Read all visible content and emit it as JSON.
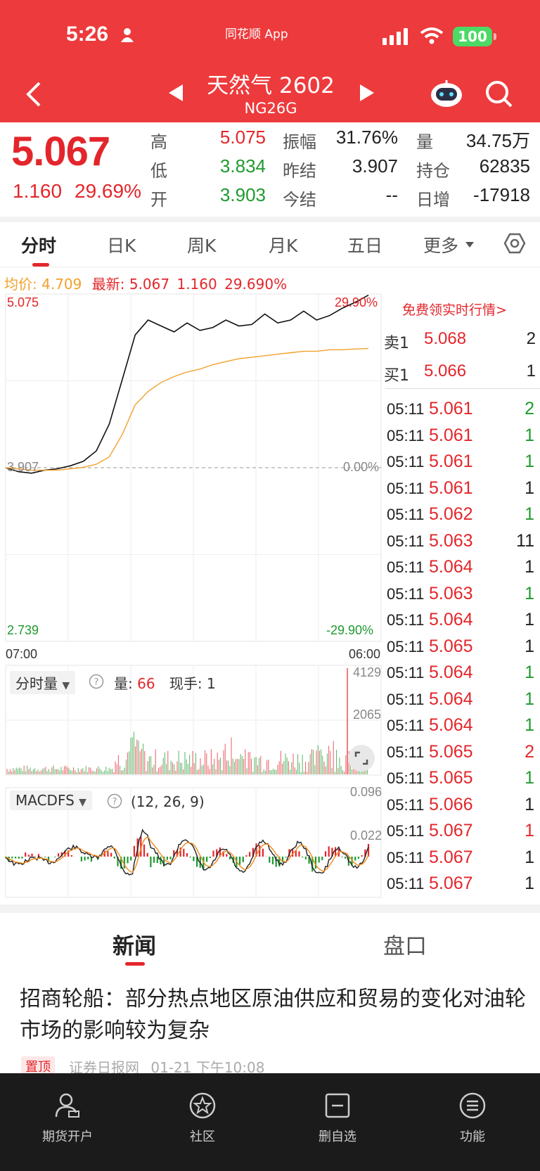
{
  "status_bar": {
    "time": "5:26",
    "app": "同花顺 App",
    "battery": "100"
  },
  "header": {
    "name": "天然气 2602",
    "code": "NG26G"
  },
  "quote": {
    "last": "5.067",
    "change": "1.160",
    "change_pct": "29.69%",
    "high_label": "高",
    "high": "5.075",
    "low_label": "低",
    "low": "3.834",
    "open_label": "开",
    "open": "3.903",
    "amp_label": "振幅",
    "amp": "31.76%",
    "prev_settle_label": "昨结",
    "prev_settle": "3.907",
    "settle_label": "今结",
    "settle": "--",
    "vol_label": "量",
    "vol": "34.75万",
    "oi_label": "持仓",
    "oi": "62835",
    "oi_chg_label": "日增",
    "oi_chg": "-17918"
  },
  "tabs": [
    "分时",
    "日K",
    "周K",
    "月K",
    "五日",
    "更多"
  ],
  "info": {
    "avg_label": "均价:",
    "avg": "4.709",
    "latest_label": "最新:",
    "latest": "5.067",
    "chg": "1.160",
    "pct": "29.690%"
  },
  "chart_axes": {
    "y_top": "5.075",
    "y_mid": "3.907",
    "y_bot": "2.739",
    "pct_top": "29.90%",
    "pct_mid": "0.00%",
    "pct_bot": "-29.90%",
    "t_start": "07:00",
    "t_end": "06:00"
  },
  "chart_data": [
    {
      "type": "line",
      "title": "",
      "ylim": [
        2.739,
        5.075
      ],
      "series": [
        {
          "name": "最新",
          "values": [
            3.907,
            3.88,
            3.87,
            3.89,
            3.9,
            3.92,
            3.95,
            4.02,
            4.2,
            4.5,
            4.8,
            4.9,
            4.86,
            4.82,
            4.88,
            4.83,
            4.85,
            4.9,
            4.86,
            4.87,
            4.94,
            4.88,
            4.9,
            4.96,
            4.9,
            4.93,
            4.98,
            5.02,
            5.067
          ]
        },
        {
          "name": "均价",
          "values": [
            3.907,
            3.9,
            3.89,
            3.89,
            3.89,
            3.9,
            3.91,
            3.93,
            3.98,
            4.13,
            4.33,
            4.42,
            4.48,
            4.52,
            4.55,
            4.57,
            4.6,
            4.62,
            4.64,
            4.65,
            4.66,
            4.67,
            4.68,
            4.69,
            4.69,
            4.7,
            4.7,
            4.705,
            4.709
          ]
        }
      ]
    },
    {
      "type": "bar",
      "title": "分时量",
      "ylim": [
        0,
        4129
      ],
      "ticks": [
        "4129",
        "2065"
      ]
    },
    {
      "type": "line",
      "title": "MACDFS",
      "params": "(12, 26, 9)",
      "ticks": [
        "0.096",
        "0.022"
      ]
    }
  ],
  "vol_panel": {
    "label": "分时量",
    "vol_label": "量:",
    "vol": "66",
    "hand_label": "现手:",
    "hand": "1"
  },
  "macd_panel": {
    "label": "MACDFS",
    "params": "(12, 26, 9)"
  },
  "order_book": {
    "free_quote": "免费领实时行情>",
    "ask_label": "卖1",
    "ask_price": "5.068",
    "ask_vol": "2",
    "bid_label": "买1",
    "bid_price": "5.066",
    "bid_vol": "1"
  },
  "trades": [
    {
      "t": "05:11",
      "p": "5.061",
      "v": "2",
      "c": "#1f9a2f"
    },
    {
      "t": "05:11",
      "p": "5.061",
      "v": "1",
      "c": "#1f9a2f"
    },
    {
      "t": "05:11",
      "p": "5.061",
      "v": "1",
      "c": "#1f9a2f"
    },
    {
      "t": "05:11",
      "p": "5.061",
      "v": "1",
      "c": "#222222"
    },
    {
      "t": "05:11",
      "p": "5.062",
      "v": "1",
      "c": "#1f9a2f"
    },
    {
      "t": "05:11",
      "p": "5.063",
      "v": "11",
      "c": "#222222"
    },
    {
      "t": "05:11",
      "p": "5.064",
      "v": "1",
      "c": "#222222"
    },
    {
      "t": "05:11",
      "p": "5.063",
      "v": "1",
      "c": "#1f9a2f"
    },
    {
      "t": "05:11",
      "p": "5.064",
      "v": "1",
      "c": "#222222"
    },
    {
      "t": "05:11",
      "p": "5.065",
      "v": "1",
      "c": "#222222"
    },
    {
      "t": "05:11",
      "p": "5.064",
      "v": "1",
      "c": "#1f9a2f"
    },
    {
      "t": "05:11",
      "p": "5.064",
      "v": "1",
      "c": "#1f9a2f"
    },
    {
      "t": "05:11",
      "p": "5.064",
      "v": "1",
      "c": "#1f9a2f"
    },
    {
      "t": "05:11",
      "p": "5.065",
      "v": "2",
      "c": "#e3262b"
    },
    {
      "t": "05:11",
      "p": "5.065",
      "v": "1",
      "c": "#1f9a2f"
    },
    {
      "t": "05:11",
      "p": "5.066",
      "v": "1",
      "c": "#222222"
    },
    {
      "t": "05:11",
      "p": "5.067",
      "v": "1",
      "c": "#e3262b"
    },
    {
      "t": "05:11",
      "p": "5.067",
      "v": "1",
      "c": "#222222"
    },
    {
      "t": "05:11",
      "p": "5.067",
      "v": "1",
      "c": "#222222"
    }
  ],
  "news": {
    "tab_news": "新闻",
    "tab_pankou": "盘口",
    "headline": "招商轮船：部分热点地区原油供应和贸易的变化对油轮市场的影响较为复杂",
    "pin": "置顶",
    "source": "证券日报网",
    "time": "01-21 下午10:08"
  },
  "nav": [
    "期货开户",
    "社区",
    "删自选",
    "功能"
  ],
  "colors": {
    "header_red": "#ed3a3c",
    "up_red": "#e3262b",
    "down_green": "#1f9a2f",
    "avg_orange": "#f2a12b"
  }
}
